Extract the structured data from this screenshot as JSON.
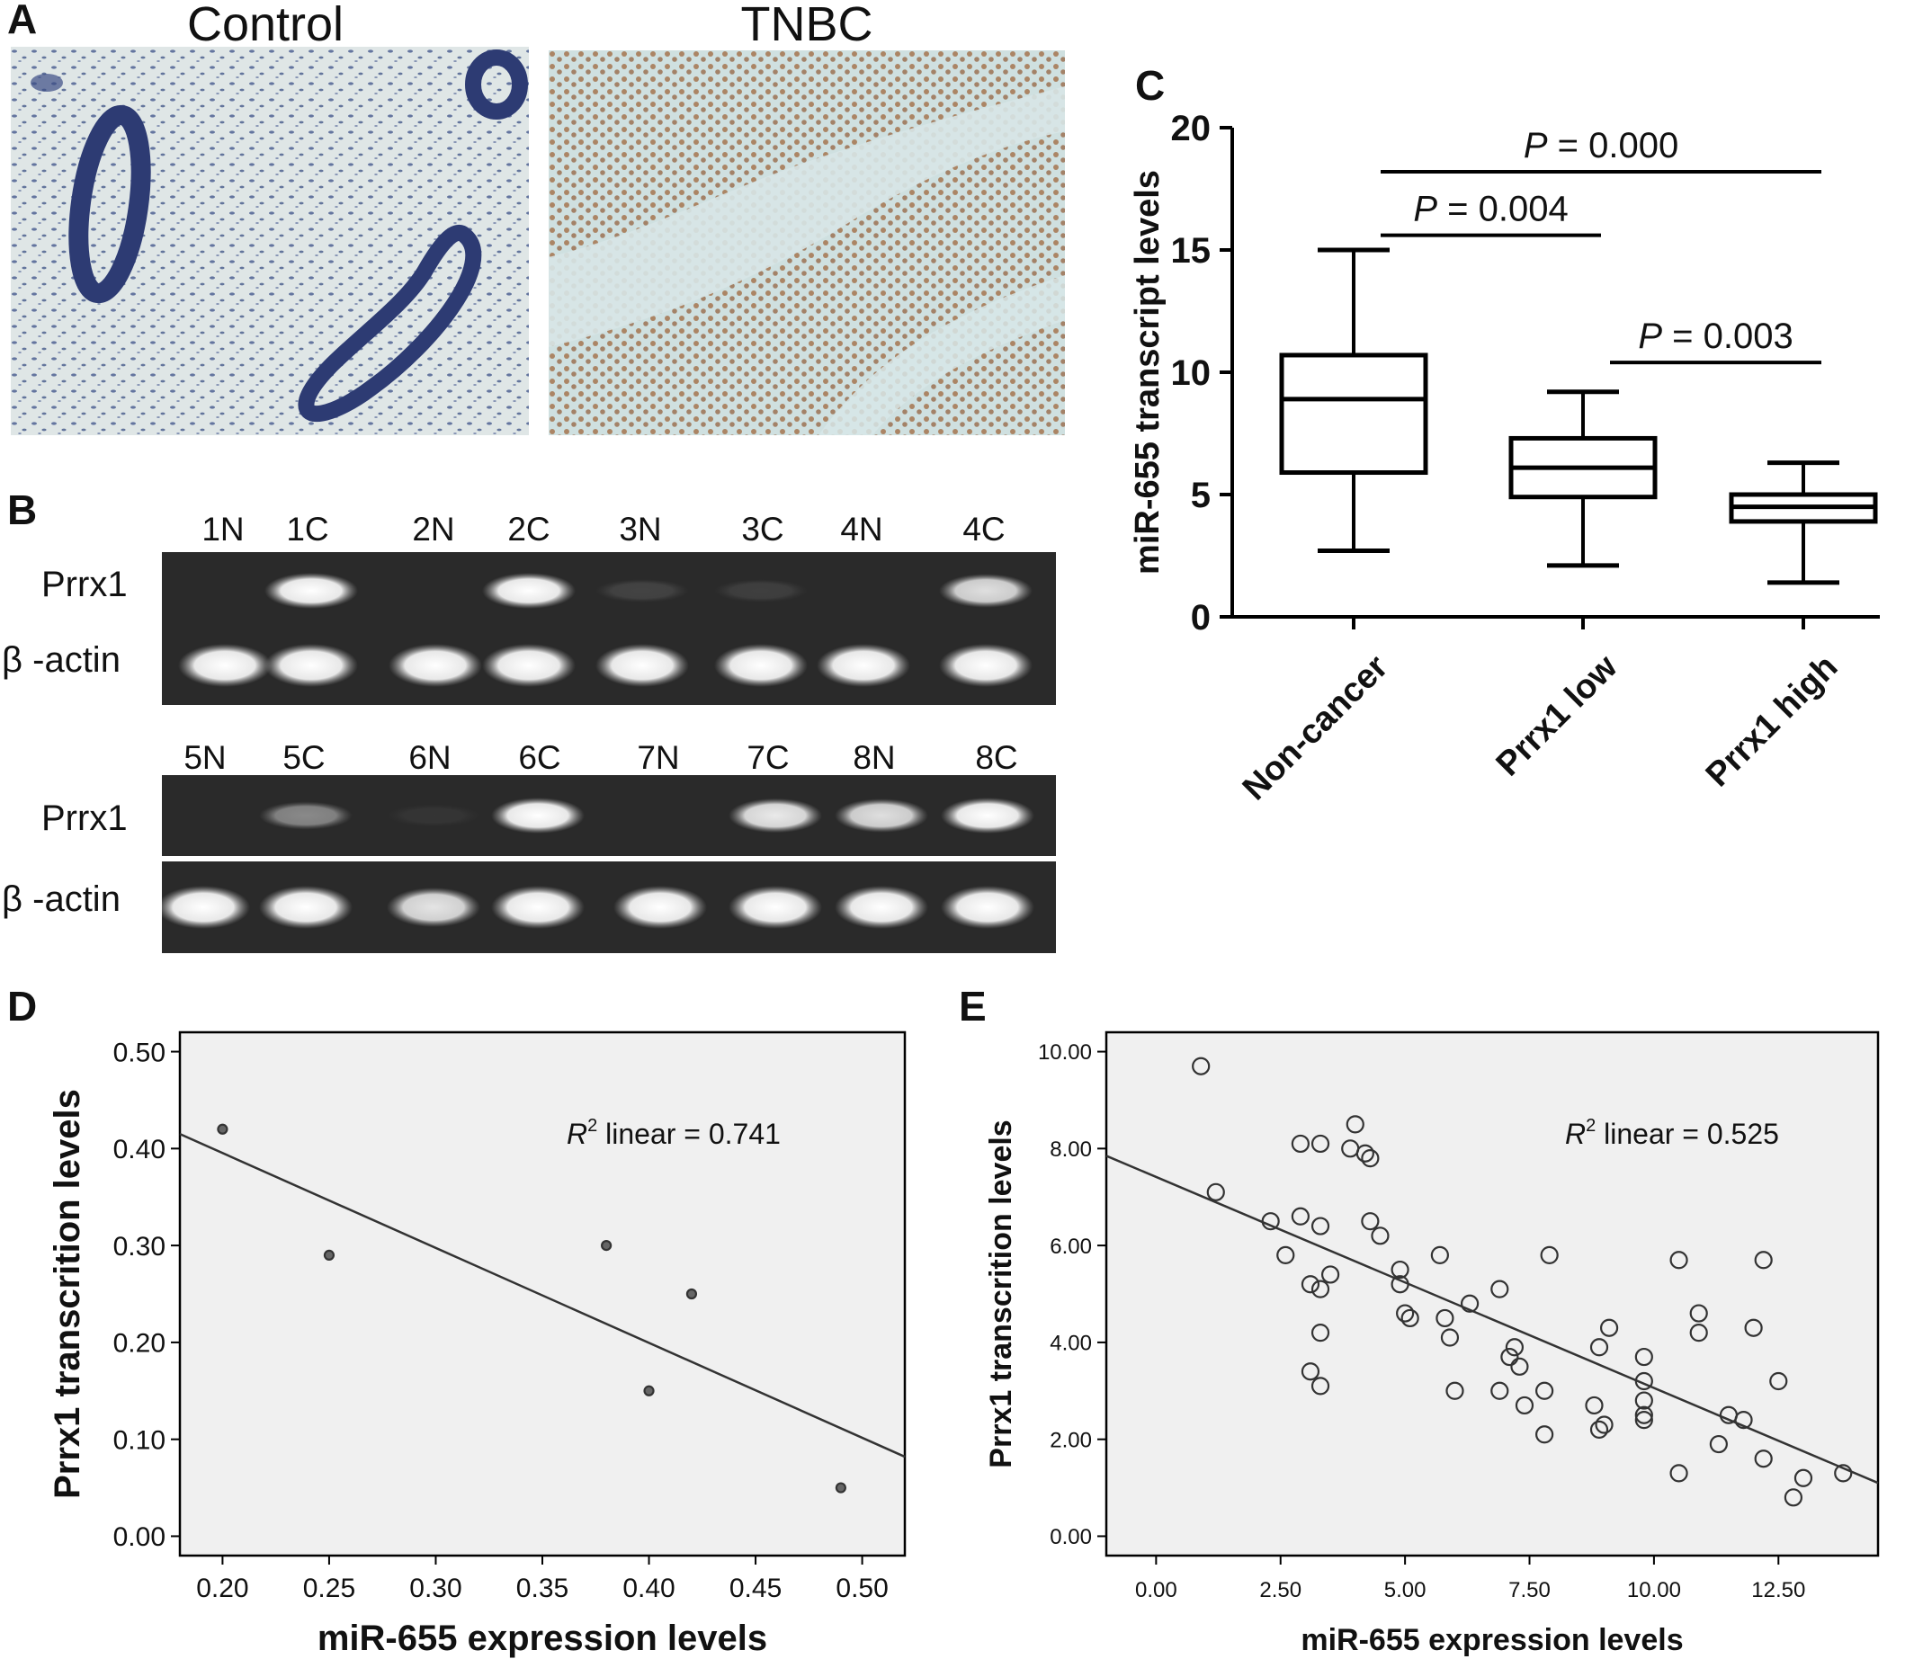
{
  "panels": {
    "A": {
      "letter": "A",
      "images": [
        {
          "title": "Control",
          "stain": "blue"
        },
        {
          "title": "TNBC",
          "stain": "brown"
        }
      ]
    },
    "B": {
      "letter": "B",
      "rows": [
        {
          "lanes": [
            "1N",
            "1C",
            "2N",
            "2C",
            "3N",
            "3C",
            "4N",
            "4C"
          ],
          "prrx1_label": "Prrx1",
          "actin_label": "β -actin",
          "prrx1_intensity": [
            0,
            1,
            0,
            1,
            0.12,
            0.1,
            0,
            0.85
          ],
          "actin_intensity": [
            1,
            1,
            1,
            1,
            1,
            1,
            1,
            1
          ]
        },
        {
          "lanes": [
            "5N",
            "5C",
            "6N",
            "6C",
            "7N",
            "7C",
            "8N",
            "8C"
          ],
          "prrx1_label": "Prrx1",
          "actin_label": "β -actin",
          "prrx1_intensity": [
            0,
            0.45,
            0.05,
            1,
            0,
            0.9,
            0.85,
            1
          ],
          "actin_intensity": [
            1,
            1,
            0.75,
            1,
            1,
            1,
            1,
            1
          ]
        }
      ]
    },
    "C": {
      "letter": "C",
      "chart_data": {
        "type": "box",
        "ylabel": "miR-655  transcript levels",
        "ylim": [
          0,
          20
        ],
        "yticks": [
          0,
          5,
          10,
          15,
          20
        ],
        "categories": [
          "Non-cancer",
          "Prrx1 low",
          "Prrx1 high"
        ],
        "boxes": [
          {
            "name": "Non-cancer",
            "min": 2.7,
            "q1": 5.9,
            "median": 8.9,
            "q3": 10.7,
            "max": 15.0
          },
          {
            "name": "Prrx1 low",
            "min": 2.1,
            "q1": 4.9,
            "median": 6.1,
            "q3": 7.3,
            "max": 9.2
          },
          {
            "name": "Prrx1 high",
            "min": 1.4,
            "q1": 3.9,
            "median": 4.5,
            "q3": 5.0,
            "max": 6.3
          }
        ],
        "comparisons": [
          {
            "from": 0,
            "to": 2,
            "y": 18.2,
            "italic": "P",
            "text": " = 0.000"
          },
          {
            "from": 0,
            "to": 1,
            "y": 15.6,
            "italic": "P",
            "text": " = 0.004"
          },
          {
            "from": 1,
            "to": 2,
            "y": 10.4,
            "italic": "P",
            "text": " = 0.003"
          }
        ]
      }
    },
    "D": {
      "letter": "D",
      "chart_data": {
        "type": "scatter",
        "xlabel": "miR-655 expression levels",
        "ylabel": "Prrx1 transcrition levels",
        "xlim": [
          0.18,
          0.52
        ],
        "ylim": [
          -0.02,
          0.52
        ],
        "xticks": [
          "0.20",
          "0.25",
          "0.30",
          "0.35",
          "0.40",
          "0.45",
          "0.50"
        ],
        "yticks": [
          "0.00",
          "0.10",
          "0.20",
          "0.30",
          "0.40",
          "0.50"
        ],
        "points": [
          {
            "x": 0.2,
            "y": 0.42
          },
          {
            "x": 0.25,
            "y": 0.29
          },
          {
            "x": 0.38,
            "y": 0.3
          },
          {
            "x": 0.42,
            "y": 0.25
          },
          {
            "x": 0.4,
            "y": 0.15
          },
          {
            "x": 0.49,
            "y": 0.05
          }
        ],
        "fit": {
          "x1": 0.18,
          "y1": 0.415,
          "x2": 0.52,
          "y2": 0.082
        },
        "annotation_italic": "R",
        "annotation_sup": "2",
        "annotation_text": " linear = 0.741"
      }
    },
    "E": {
      "letter": "E",
      "chart_data": {
        "type": "scatter",
        "xlabel": "miR-655 expression levels",
        "ylabel": "Prrx1 transcrition levels",
        "xlim": [
          -1.0,
          14.5
        ],
        "ylim": [
          -0.4,
          10.4
        ],
        "xticks": [
          "0.00",
          "2.50",
          "5.00",
          "7.50",
          "10.00",
          "12.50"
        ],
        "yticks": [
          "0.00",
          "2.00",
          "4.00",
          "6.00",
          "8.00",
          "10.00"
        ],
        "points": [
          {
            "x": 0.9,
            "y": 9.7
          },
          {
            "x": 1.2,
            "y": 7.1
          },
          {
            "x": 2.3,
            "y": 6.5
          },
          {
            "x": 2.6,
            "y": 5.8
          },
          {
            "x": 2.9,
            "y": 8.1
          },
          {
            "x": 2.9,
            "y": 6.6
          },
          {
            "x": 3.1,
            "y": 5.2
          },
          {
            "x": 3.1,
            "y": 3.4
          },
          {
            "x": 3.3,
            "y": 8.1
          },
          {
            "x": 3.3,
            "y": 6.4
          },
          {
            "x": 3.3,
            "y": 5.1
          },
          {
            "x": 3.3,
            "y": 4.2
          },
          {
            "x": 3.3,
            "y": 3.1
          },
          {
            "x": 3.5,
            "y": 5.4
          },
          {
            "x": 3.9,
            "y": 8.0
          },
          {
            "x": 4.0,
            "y": 8.5
          },
          {
            "x": 4.2,
            "y": 7.9
          },
          {
            "x": 4.3,
            "y": 7.8
          },
          {
            "x": 4.3,
            "y": 6.5
          },
          {
            "x": 4.5,
            "y": 6.2
          },
          {
            "x": 4.9,
            "y": 5.5
          },
          {
            "x": 4.9,
            "y": 5.2
          },
          {
            "x": 5.0,
            "y": 4.6
          },
          {
            "x": 5.1,
            "y": 4.5
          },
          {
            "x": 5.7,
            "y": 5.8
          },
          {
            "x": 5.8,
            "y": 4.5
          },
          {
            "x": 5.9,
            "y": 4.1
          },
          {
            "x": 6.0,
            "y": 3.0
          },
          {
            "x": 6.3,
            "y": 4.8
          },
          {
            "x": 6.9,
            "y": 5.1
          },
          {
            "x": 6.9,
            "y": 3.0
          },
          {
            "x": 7.1,
            "y": 3.7
          },
          {
            "x": 7.2,
            "y": 3.9
          },
          {
            "x": 7.3,
            "y": 3.5
          },
          {
            "x": 7.4,
            "y": 2.7
          },
          {
            "x": 7.8,
            "y": 3.0
          },
          {
            "x": 7.8,
            "y": 2.1
          },
          {
            "x": 7.9,
            "y": 5.8
          },
          {
            "x": 8.8,
            "y": 2.7
          },
          {
            "x": 8.9,
            "y": 3.9
          },
          {
            "x": 8.9,
            "y": 2.2
          },
          {
            "x": 9.0,
            "y": 2.3
          },
          {
            "x": 9.1,
            "y": 4.3
          },
          {
            "x": 9.8,
            "y": 3.7
          },
          {
            "x": 9.8,
            "y": 3.2
          },
          {
            "x": 9.8,
            "y": 2.8
          },
          {
            "x": 9.8,
            "y": 2.5
          },
          {
            "x": 9.8,
            "y": 2.4
          },
          {
            "x": 10.5,
            "y": 5.7
          },
          {
            "x": 10.5,
            "y": 1.3
          },
          {
            "x": 10.9,
            "y": 4.6
          },
          {
            "x": 10.9,
            "y": 4.2
          },
          {
            "x": 11.3,
            "y": 1.9
          },
          {
            "x": 11.5,
            "y": 2.5
          },
          {
            "x": 11.8,
            "y": 2.4
          },
          {
            "x": 12.0,
            "y": 4.3
          },
          {
            "x": 12.2,
            "y": 5.7
          },
          {
            "x": 12.2,
            "y": 1.6
          },
          {
            "x": 12.5,
            "y": 3.2
          },
          {
            "x": 12.8,
            "y": 0.8
          },
          {
            "x": 13.0,
            "y": 1.2
          },
          {
            "x": 13.8,
            "y": 1.3
          }
        ],
        "fit": {
          "x1": -1.0,
          "y1": 7.85,
          "x2": 14.5,
          "y2": 1.1
        },
        "annotation_italic": "R",
        "annotation_sup": "2",
        "annotation_text": " linear = 0.525"
      }
    }
  }
}
